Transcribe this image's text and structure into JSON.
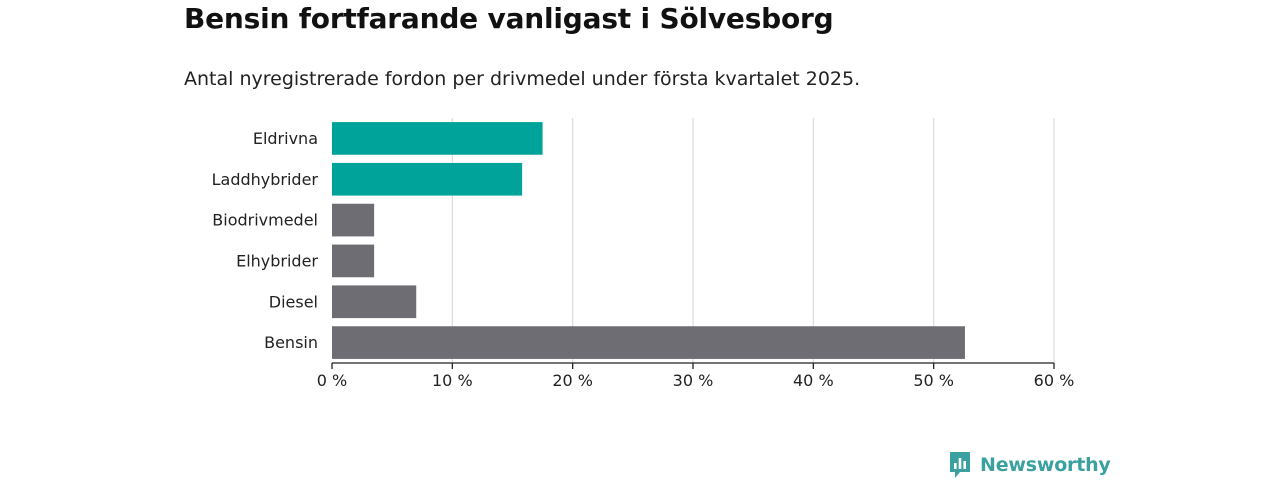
{
  "header": {
    "title": "Bensin fortfarande vanligast i Sölvesborg",
    "subtitle": "Antal nyregistrerade fordon per drivmedel under första kvartalet 2025."
  },
  "chart_data": {
    "type": "bar",
    "orientation": "horizontal",
    "categories": [
      "Eldrivna",
      "Laddhybrider",
      "Biodrivmedel",
      "Elhybrider",
      "Diesel",
      "Bensin"
    ],
    "values": [
      17.5,
      15.8,
      3.5,
      3.5,
      7.0,
      52.6
    ],
    "colors": [
      "#00a39a",
      "#00a39a",
      "#6e6d73",
      "#6e6d73",
      "#6e6d73",
      "#6e6d73"
    ],
    "xlim": [
      0,
      60
    ],
    "xticks": [
      0,
      10,
      20,
      30,
      40,
      50,
      60
    ],
    "xtick_labels": [
      "0 %",
      "10 %",
      "20 %",
      "30 %",
      "40 %",
      "50 %",
      "60 %"
    ],
    "grid": "vertical",
    "legend": "none"
  },
  "footer": {
    "brand": "Newsworthy",
    "brand_color": "#3aa0a0",
    "brand_icon": "bar-chart-speech-bubble-icon"
  }
}
